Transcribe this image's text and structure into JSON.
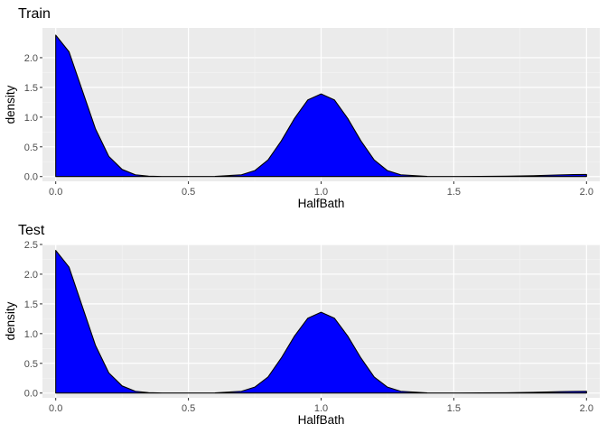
{
  "chart_data": [
    {
      "type": "area",
      "title": "Train",
      "xlabel": "HalfBath",
      "ylabel": "density",
      "xlim": [
        -0.05,
        2.05
      ],
      "ylim": [
        -0.08,
        2.5
      ],
      "x_ticks": [
        0.0,
        0.5,
        1.0,
        1.5,
        2.0
      ],
      "x_tick_labels": [
        "0.0",
        "0.5",
        "1.0",
        "1.5",
        "2.0"
      ],
      "y_ticks": [
        0.0,
        0.5,
        1.0,
        1.5,
        2.0
      ],
      "y_tick_labels": [
        "0.0",
        "0.5",
        "1.0",
        "1.5",
        "2.0"
      ],
      "grid": true,
      "fill_color": "#0000ff",
      "line_color": "#000000",
      "panel_color": "#ebebeb",
      "peaks": [
        {
          "x": 0.0,
          "y": 2.38
        },
        {
          "x": 1.0,
          "y": 1.39
        },
        {
          "x": 2.0,
          "y": 0.035
        }
      ],
      "x": [
        0.0,
        0.05,
        0.1,
        0.15,
        0.2,
        0.25,
        0.3,
        0.35,
        0.4,
        0.5,
        0.6,
        0.7,
        0.75,
        0.8,
        0.85,
        0.9,
        0.95,
        1.0,
        1.05,
        1.1,
        1.15,
        1.2,
        1.25,
        1.3,
        1.4,
        1.5,
        1.6,
        1.7,
        1.8,
        1.9,
        1.95,
        2.0
      ],
      "y": [
        2.38,
        2.1,
        1.45,
        0.8,
        0.34,
        0.12,
        0.03,
        0.006,
        0.0,
        0.0,
        0.002,
        0.03,
        0.1,
        0.28,
        0.6,
        0.98,
        1.29,
        1.39,
        1.29,
        0.98,
        0.6,
        0.28,
        0.1,
        0.03,
        0.002,
        0.0,
        0.002,
        0.006,
        0.015,
        0.028,
        0.033,
        0.035
      ]
    },
    {
      "type": "area",
      "title": "Test",
      "xlabel": "HalfBath",
      "ylabel": "density",
      "xlim": [
        -0.05,
        2.05
      ],
      "ylim": [
        -0.08,
        2.5
      ],
      "x_ticks": [
        0.0,
        0.5,
        1.0,
        1.5,
        2.0
      ],
      "x_tick_labels": [
        "0.0",
        "0.5",
        "1.0",
        "1.5",
        "2.0"
      ],
      "y_ticks": [
        0.0,
        0.5,
        1.0,
        1.5,
        2.0,
        2.5
      ],
      "y_tick_labels": [
        "0.0",
        "0.5",
        "1.0",
        "1.5",
        "2.0",
        "2.5"
      ],
      "grid": true,
      "fill_color": "#0000ff",
      "line_color": "#000000",
      "panel_color": "#ebebeb",
      "peaks": [
        {
          "x": 0.0,
          "y": 2.4
        },
        {
          "x": 1.0,
          "y": 1.36
        },
        {
          "x": 2.0,
          "y": 0.03
        }
      ],
      "x": [
        0.0,
        0.05,
        0.1,
        0.15,
        0.2,
        0.25,
        0.3,
        0.35,
        0.4,
        0.5,
        0.6,
        0.7,
        0.75,
        0.8,
        0.85,
        0.9,
        0.95,
        1.0,
        1.05,
        1.1,
        1.15,
        1.2,
        1.25,
        1.3,
        1.4,
        1.5,
        1.6,
        1.7,
        1.8,
        1.9,
        1.95,
        2.0
      ],
      "y": [
        2.4,
        2.12,
        1.46,
        0.8,
        0.34,
        0.12,
        0.03,
        0.006,
        0.0,
        0.0,
        0.002,
        0.03,
        0.1,
        0.27,
        0.59,
        0.96,
        1.26,
        1.36,
        1.26,
        0.96,
        0.59,
        0.27,
        0.1,
        0.03,
        0.002,
        0.0,
        0.002,
        0.005,
        0.012,
        0.024,
        0.028,
        0.03
      ]
    }
  ]
}
